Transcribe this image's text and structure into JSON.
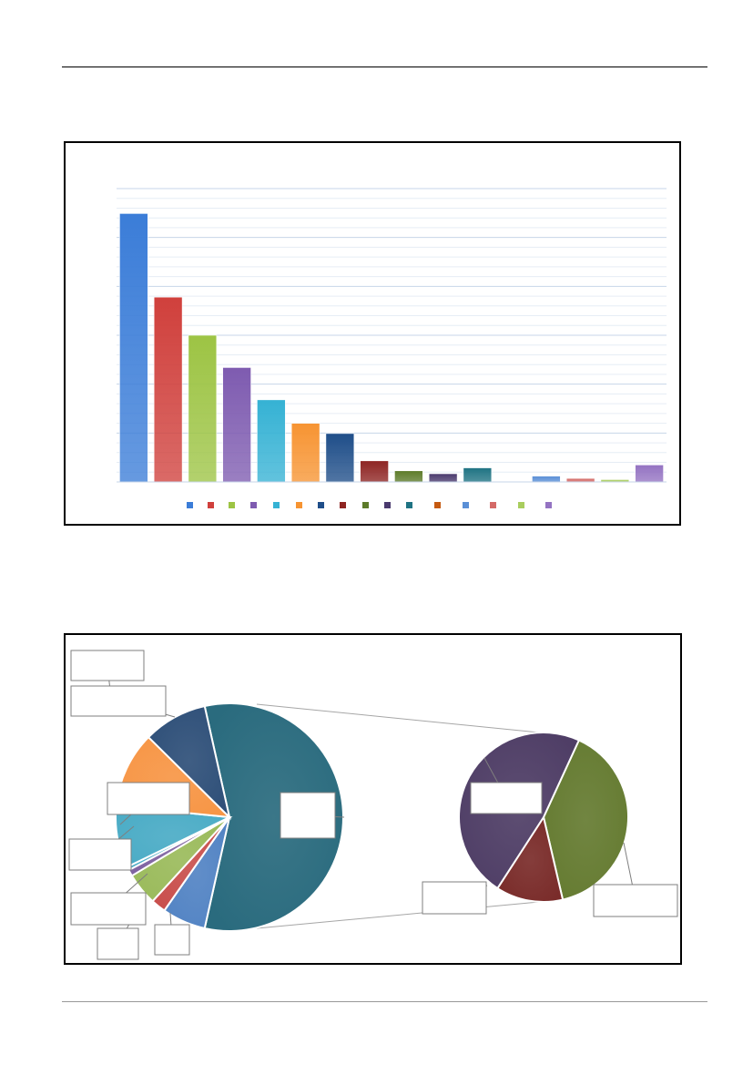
{
  "chart_data": [
    {
      "type": "bar",
      "categories": [
        "",
        "",
        "",
        "",
        "",
        "",
        "",
        "",
        "",
        "",
        "",
        "",
        "",
        "",
        "",
        ""
      ],
      "values": [
        0.915,
        0.63,
        0.5,
        0.39,
        0.28,
        0.2,
        0.165,
        0.072,
        0.038,
        0.028,
        0.048,
        0.0,
        0.02,
        0.012,
        0.008,
        0.058
      ],
      "colors": [
        "#3b7dd8",
        "#d0403c",
        "#9dc444",
        "#7e5bb0",
        "#35b2d4",
        "#f79432",
        "#1f4e89",
        "#8e2422",
        "#5d7b2a",
        "#4a3a6e",
        "#1f7383",
        "#c55a11",
        "#5a8fd6",
        "#d46a67",
        "#a9cd5e",
        "#9473c2"
      ],
      "ylim": [
        0,
        1
      ],
      "grid": true,
      "legend": "bottom"
    },
    {
      "type": "pie",
      "main_pie": {
        "values": [
          57.0,
          6.2,
          2.1,
          4.6,
          0.9,
          0.5,
          8.8,
          10.8,
          9.1
        ],
        "colors": [
          "#2a6b7e",
          "#5384c4",
          "#c9504d",
          "#9bbb5c",
          "#8064a2",
          "#4bacc6",
          "#4bacc6",
          "#f79646",
          "#2f5079"
        ]
      },
      "secondary_pie": {
        "values": [
          39.5,
          12.8,
          47.7
        ],
        "colors": [
          "#657b31",
          "#7a2c2a",
          "#4f3e66"
        ]
      },
      "legend": "none"
    }
  ]
}
